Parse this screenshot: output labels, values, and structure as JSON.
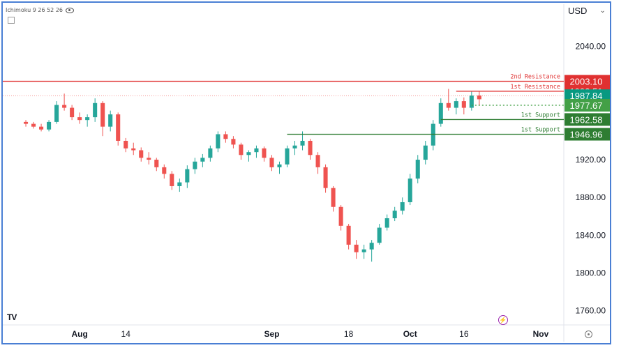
{
  "indicator": {
    "label": "Ichimoku 9 26 52 26",
    "icon": "eye-icon"
  },
  "currency": {
    "label": "USD",
    "icon": "chevron-down-icon"
  },
  "chart_data": {
    "type": "candlestick",
    "symbol_currency": "USD",
    "y_ticks": [
      "2040.00",
      "1920.00",
      "1880.00",
      "1840.00",
      "1800.00",
      "1760.00"
    ],
    "ylim": [
      1745,
      2067
    ],
    "x_ticks": [
      "Aug",
      "14",
      "Sep",
      "18",
      "Oct",
      "16",
      "Nov"
    ],
    "x_tick_pos": [
      7,
      13,
      32,
      42,
      50,
      57,
      67
    ],
    "xlim": [
      -3,
      70
    ],
    "up_color": "#26a69a",
    "down_color": "#ef5350",
    "candles": [
      [
        1960,
        1962,
        1955,
        1958
      ],
      [
        1958,
        1960,
        1953,
        1955
      ],
      [
        1955,
        1958,
        1950,
        1952
      ],
      [
        1952,
        1962,
        1950,
        1960
      ],
      [
        1960,
        1982,
        1958,
        1978
      ],
      [
        1978,
        1990,
        1972,
        1975
      ],
      [
        1975,
        1978,
        1962,
        1965
      ],
      [
        1965,
        1970,
        1958,
        1962
      ],
      [
        1962,
        1968,
        1955,
        1965
      ],
      [
        1965,
        1985,
        1960,
        1980
      ],
      [
        1980,
        1982,
        1945,
        1955
      ],
      [
        1955,
        1972,
        1950,
        1968
      ],
      [
        1968,
        1970,
        1935,
        1940
      ],
      [
        1940,
        1943,
        1928,
        1932
      ],
      [
        1932,
        1938,
        1925,
        1930
      ],
      [
        1930,
        1933,
        1918,
        1922
      ],
      [
        1922,
        1928,
        1915,
        1920
      ],
      [
        1920,
        1922,
        1908,
        1912
      ],
      [
        1912,
        1915,
        1900,
        1905
      ],
      [
        1905,
        1908,
        1888,
        1892
      ],
      [
        1892,
        1900,
        1886,
        1896
      ],
      [
        1896,
        1914,
        1890,
        1910
      ],
      [
        1910,
        1922,
        1905,
        1918
      ],
      [
        1918,
        1926,
        1912,
        1922
      ],
      [
        1922,
        1935,
        1918,
        1932
      ],
      [
        1932,
        1950,
        1928,
        1947
      ],
      [
        1947,
        1950,
        1938,
        1942
      ],
      [
        1942,
        1945,
        1932,
        1936
      ],
      [
        1936,
        1938,
        1920,
        1925
      ],
      [
        1925,
        1930,
        1918,
        1928
      ],
      [
        1928,
        1935,
        1922,
        1932
      ],
      [
        1932,
        1934,
        1918,
        1922
      ],
      [
        1922,
        1925,
        1908,
        1912
      ],
      [
        1912,
        1918,
        1905,
        1915
      ],
      [
        1915,
        1935,
        1912,
        1932
      ],
      [
        1932,
        1940,
        1925,
        1935
      ],
      [
        1935,
        1950,
        1930,
        1940
      ],
      [
        1940,
        1942,
        1920,
        1925
      ],
      [
        1925,
        1928,
        1905,
        1912
      ],
      [
        1912,
        1915,
        1885,
        1890
      ],
      [
        1890,
        1892,
        1865,
        1870
      ],
      [
        1870,
        1872,
        1845,
        1850
      ],
      [
        1850,
        1852,
        1825,
        1830
      ],
      [
        1830,
        1835,
        1815,
        1822
      ],
      [
        1822,
        1830,
        1815,
        1825
      ],
      [
        1825,
        1835,
        1812,
        1832
      ],
      [
        1832,
        1852,
        1830,
        1848
      ],
      [
        1848,
        1862,
        1845,
        1858
      ],
      [
        1858,
        1870,
        1855,
        1866
      ],
      [
        1866,
        1880,
        1862,
        1875
      ],
      [
        1875,
        1905,
        1872,
        1900
      ],
      [
        1900,
        1925,
        1895,
        1920
      ],
      [
        1920,
        1940,
        1915,
        1935
      ],
      [
        1935,
        1962,
        1930,
        1958
      ],
      [
        1958,
        1985,
        1955,
        1980
      ],
      [
        1980,
        1995,
        1972,
        1975
      ],
      [
        1975,
        1985,
        1968,
        1982
      ],
      [
        1982,
        1986,
        1968,
        1975
      ],
      [
        1975,
        1992,
        1972,
        1988
      ],
      [
        1988,
        1992,
        1978,
        1984
      ]
    ],
    "levels": [
      {
        "label": "2nd Resistance",
        "value": 2003.1,
        "price_label": "2003.10",
        "color": "#e03131"
      },
      {
        "label": "1st Resistance",
        "value": 1992.51,
        "price_label": "1992.51",
        "color": "#e03131"
      },
      {
        "label": "",
        "value": 1987.84,
        "price_label": "1987.84",
        "color": "#089981"
      },
      {
        "label": "",
        "value": 1977.67,
        "price_label": "1977.67",
        "color": "#43a047"
      },
      {
        "label": "1st Support",
        "value": 1962.58,
        "price_label": "1962.58",
        "color": "#2e7d32"
      },
      {
        "label": "1st Support",
        "value": 1946.96,
        "price_label": "1946.96",
        "color": "#2e7d32"
      }
    ]
  },
  "footer": {
    "logo": "TV",
    "flash_icon": "flash-icon",
    "settings_icon": "gear-icon"
  }
}
